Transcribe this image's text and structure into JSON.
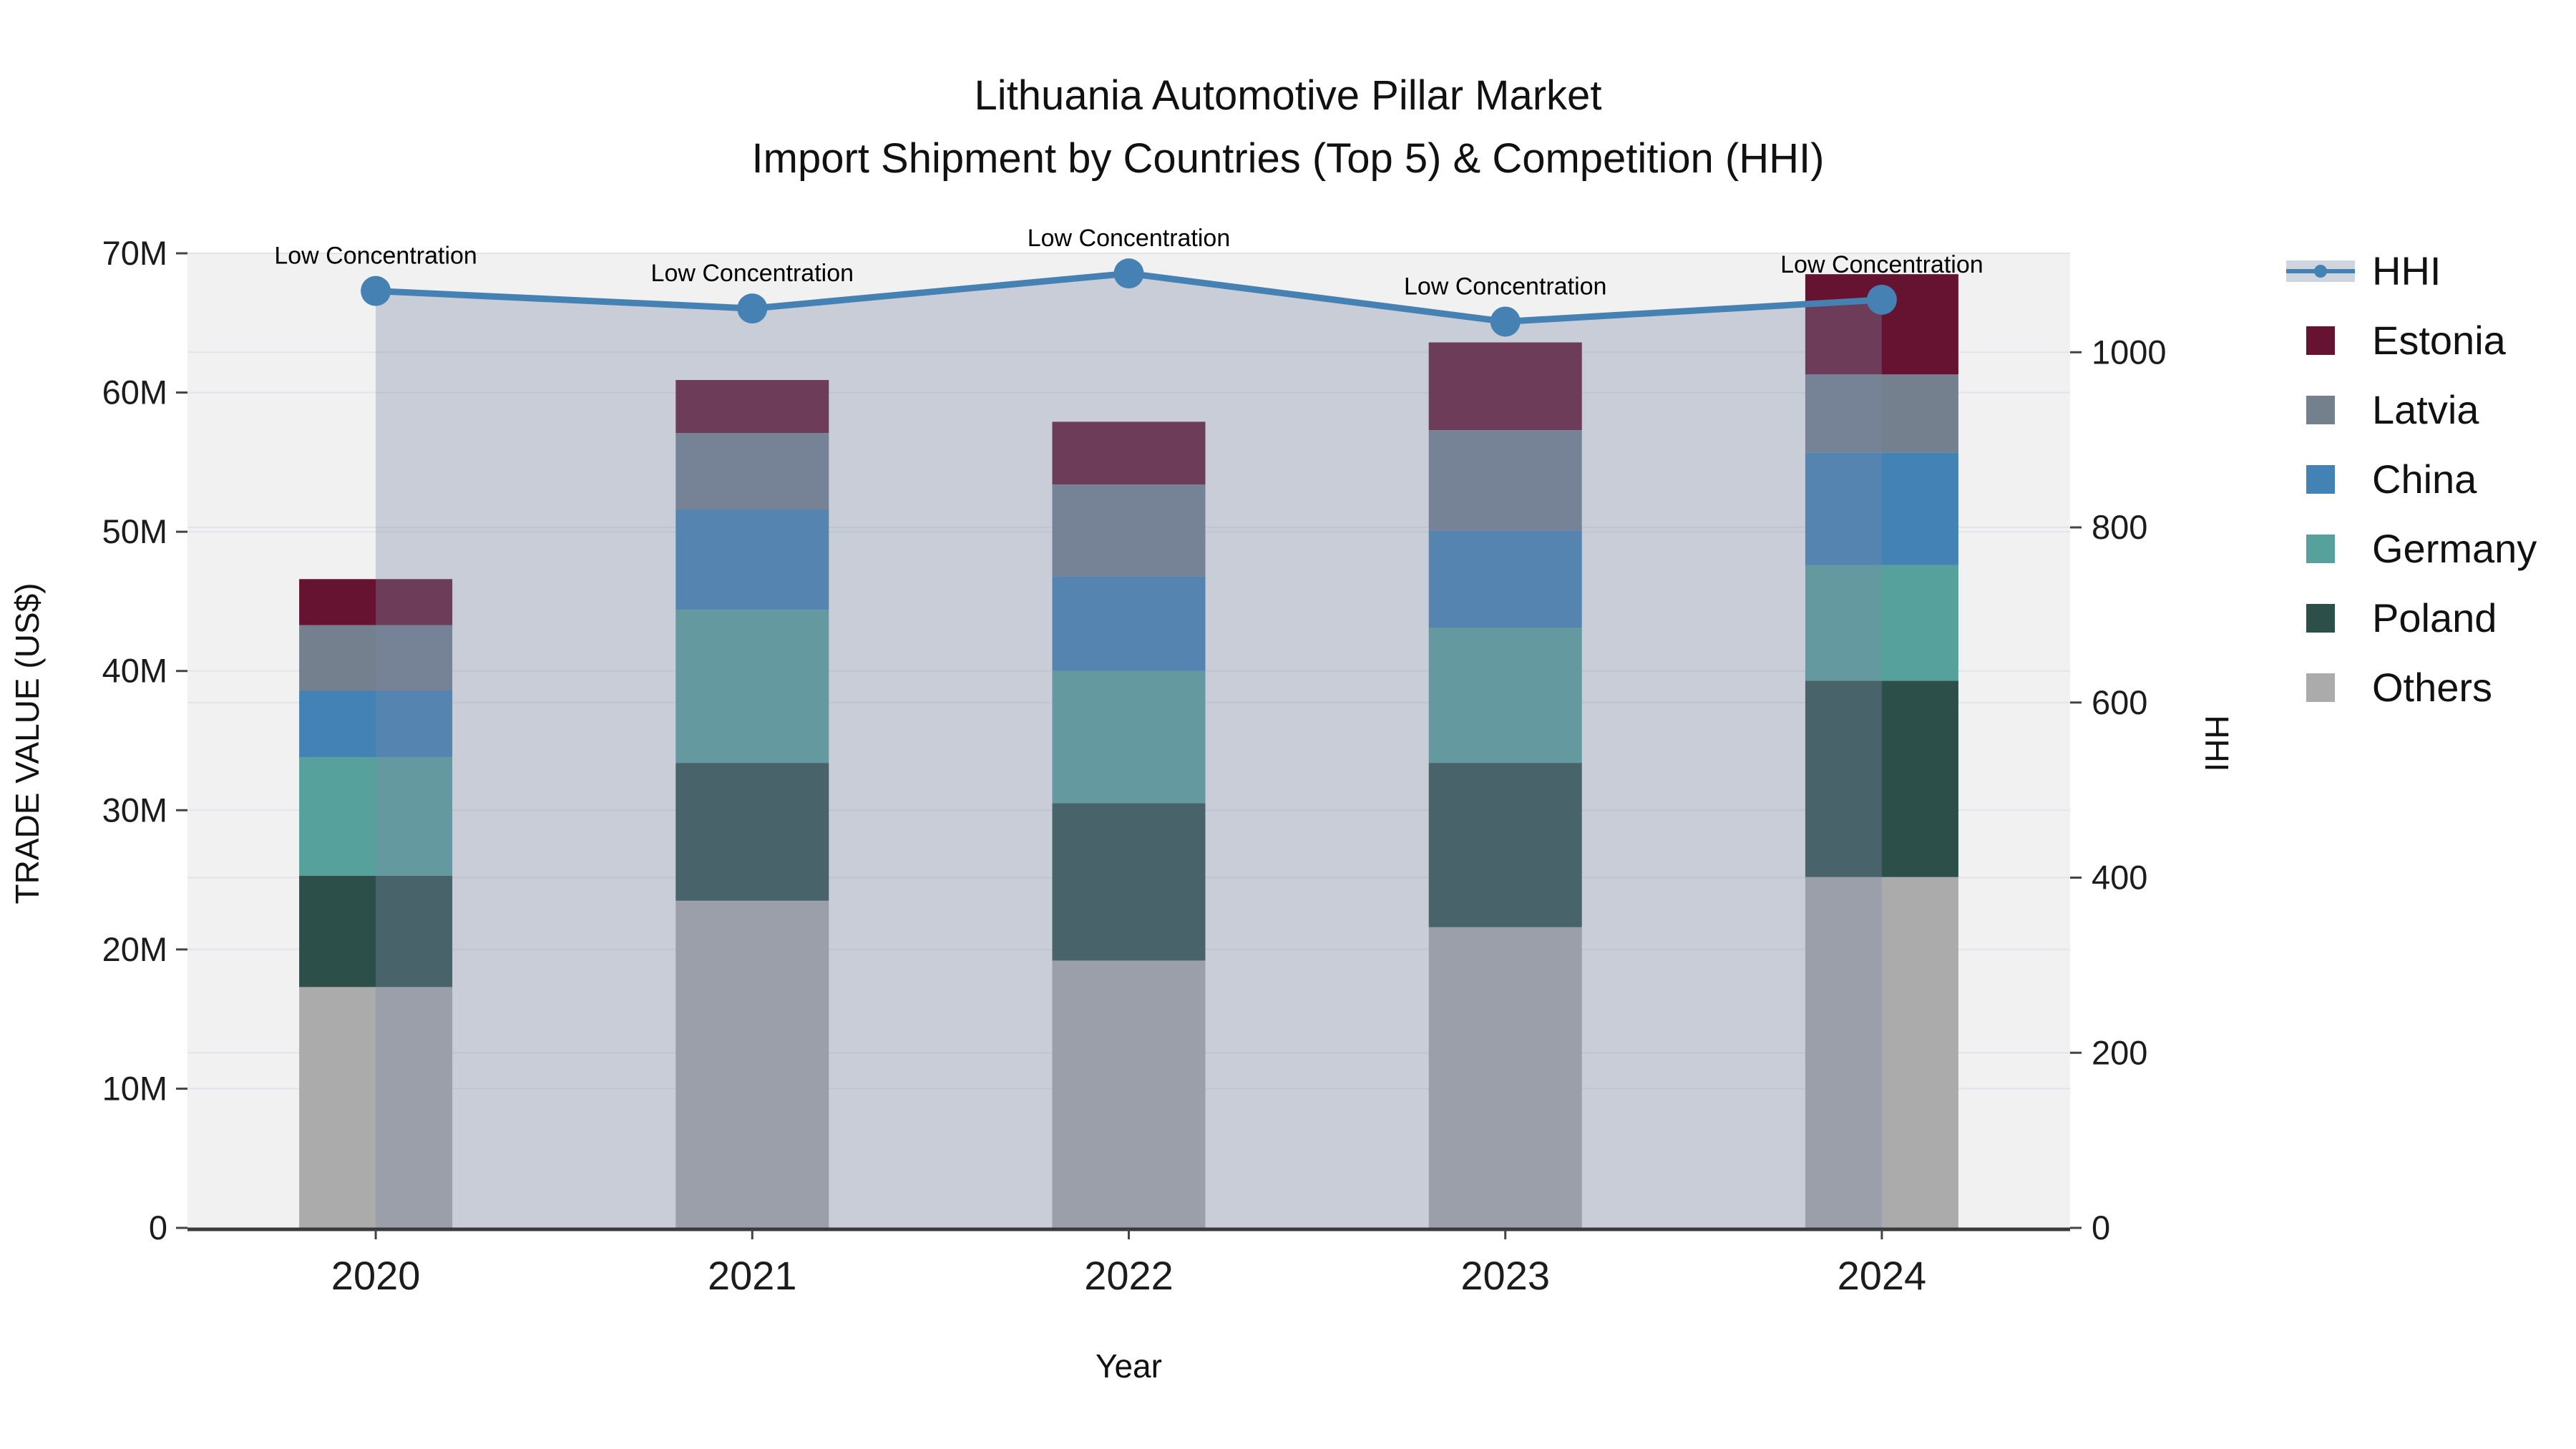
{
  "title": {
    "line1": "Lithuania Automotive Pillar Market",
    "line2": "Import Shipment by Countries (Top 5) & Competition (HHI)"
  },
  "axes": {
    "y_left": {
      "title": "TRADE VALUE (US$)"
    },
    "y_right": {
      "title": "HHI"
    },
    "x": {
      "title": "Year"
    }
  },
  "chart_data": {
    "type": "bar",
    "subtype": "stacked-bars-with-line",
    "categories": [
      "2020",
      "2021",
      "2022",
      "2023",
      "2024"
    ],
    "value_unit": "M US$ (trade value, left axis)",
    "series": [
      {
        "name": "Others",
        "color": "#ababab",
        "values": [
          17.3,
          23.5,
          19.2,
          21.6,
          25.2
        ]
      },
      {
        "name": "Poland",
        "color": "#2d4f49",
        "values": [
          8.0,
          9.9,
          11.3,
          11.8,
          14.1
        ]
      },
      {
        "name": "Germany",
        "color": "#56a19c",
        "values": [
          8.5,
          11.0,
          9.5,
          9.7,
          8.3
        ]
      },
      {
        "name": "China",
        "color": "#4282b5",
        "values": [
          4.8,
          7.2,
          6.8,
          7.0,
          8.1
        ]
      },
      {
        "name": "Latvia",
        "color": "#74808e",
        "values": [
          4.7,
          5.5,
          6.6,
          7.2,
          5.6
        ]
      },
      {
        "name": "Estonia",
        "color": "#651330",
        "values": [
          3.3,
          3.8,
          4.5,
          6.3,
          7.2
        ]
      }
    ],
    "bar_totals": [
      46.6,
      60.9,
      57.9,
      63.6,
      68.5
    ],
    "line": {
      "name": "HHI",
      "color": "#4681b3",
      "fill_color": "rgba(123,137,165,0.35)",
      "values": [
        1070,
        1050,
        1090,
        1035,
        1060
      ]
    },
    "annotations": [
      {
        "text": "Low Concentration"
      },
      {
        "text": "Low Concentration"
      },
      {
        "text": "Low Concentration"
      },
      {
        "text": "Low Concentration"
      },
      {
        "text": "Low Concentration"
      }
    ],
    "y_left": {
      "min": 0,
      "max": 70,
      "ticks": [
        0,
        10,
        20,
        30,
        40,
        50,
        60,
        70
      ],
      "tick_labels": [
        "0",
        "10M",
        "20M",
        "30M",
        "40M",
        "50M",
        "60M",
        "70M"
      ]
    },
    "y_right": {
      "min": 0,
      "max": 1113,
      "ticks": [
        0,
        200,
        400,
        600,
        800,
        1000
      ],
      "tick_labels": [
        "0",
        "200",
        "400",
        "600",
        "800",
        "1000"
      ]
    },
    "legend_position": "right",
    "grid": true
  },
  "legend": {
    "items": [
      {
        "id": "hhi",
        "label": "HHI",
        "type": "line",
        "color": "#4681b3"
      },
      {
        "id": "estonia",
        "label": "Estonia",
        "type": "square",
        "color": "#651330"
      },
      {
        "id": "latvia",
        "label": "Latvia",
        "type": "square",
        "color": "#74808e"
      },
      {
        "id": "china",
        "label": "China",
        "type": "square",
        "color": "#4282b5"
      },
      {
        "id": "germany",
        "label": "Germany",
        "type": "square",
        "color": "#56a19c"
      },
      {
        "id": "poland",
        "label": "Poland",
        "type": "square",
        "color": "#ababab-see-series"
      },
      {
        "id": "others",
        "label": "Others",
        "type": "square",
        "color": "#ababab"
      }
    ]
  },
  "colors": {
    "page_bg": "#ffffff",
    "plot_bg": "#f1f1f2",
    "grid": "#e4e4e8",
    "axis_line": "#3a3a3a",
    "tick_text": "#1c1c1c",
    "annotation_text": "#000000"
  }
}
